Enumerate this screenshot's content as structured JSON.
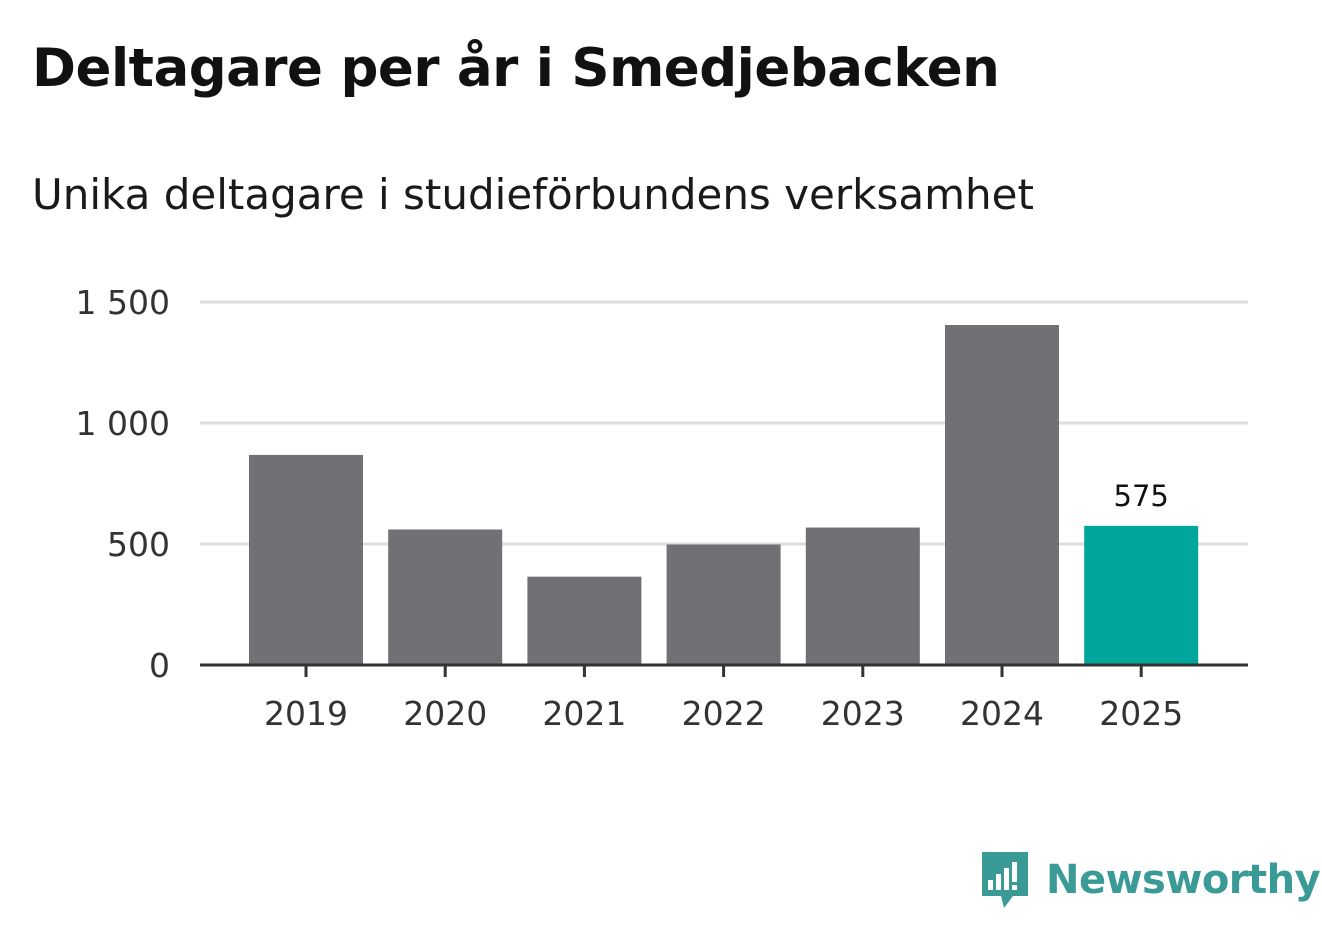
{
  "colors": {
    "bar_default": "#707075",
    "bar_highlight": "#00a59b",
    "grid": "#dddddd",
    "axis": "#333333",
    "brand": "#3a9a96"
  },
  "brand": {
    "name": "Newsworthy",
    "icon": "newsworthy-logo-icon"
  },
  "chart_data": {
    "type": "bar",
    "title": "Deltagare per år i Smedjebacken",
    "subtitle": "Unika deltagare i studieförbundens verksamhet",
    "xlabel": "",
    "ylabel": "",
    "categories": [
      "2019",
      "2020",
      "2021",
      "2022",
      "2023",
      "2024",
      "2025"
    ],
    "values": [
      868,
      560,
      365,
      498,
      568,
      1405,
      575
    ],
    "highlight_index": 6,
    "data_labels": [
      {
        "index": 6,
        "text": "575"
      }
    ],
    "ylim": [
      0,
      1500
    ],
    "yticks": [
      0,
      500,
      1000,
      1500
    ],
    "ytick_labels": [
      "0",
      "500",
      "1 000",
      "1 500"
    ],
    "grid": true,
    "legend": "none"
  }
}
